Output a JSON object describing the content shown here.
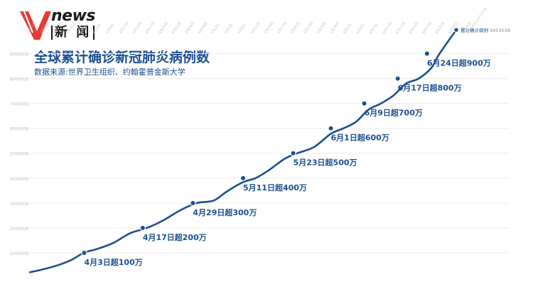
{
  "header": {
    "logo_news": "news",
    "logo_xinwen": "新 闻",
    "title": "全球累计确诊新冠肺炎病例数",
    "source": "数据来源:世界卫生组织、约翰霍普金斯大学"
  },
  "colors": {
    "line": "#1d4f91",
    "title": "#1d4f91",
    "logo_red": "#e53935",
    "grid": "#ececec",
    "tick": "#b9b9b9"
  },
  "chart_data": {
    "type": "line",
    "title": "全球累计确诊新冠肺炎病例数",
    "xlabel": "",
    "ylabel": "",
    "ylim": [
      0,
      9500000
    ],
    "yticks": [
      1000000,
      2000000,
      3000000,
      4000000,
      5000000,
      6000000,
      7000000,
      8000000,
      9000000
    ],
    "ytick_labels": [
      "1000000",
      "2000000",
      "3000000",
      "4000000",
      "5000000",
      "6000000",
      "7000000",
      "8000000",
      "9000000"
    ],
    "xticks": [
      "3月21日",
      "3月24日",
      "3月27日",
      "3月30日",
      "4月2日",
      "4月5日",
      "4月8日",
      "4月11日",
      "4月14日",
      "4月17日",
      "4月20日",
      "4月23日",
      "4月26日",
      "4月29日",
      "5月2日",
      "5月5日",
      "5月8日",
      "5月11日",
      "5月14日",
      "5月17日",
      "5月20日",
      "5月23日",
      "5月26日",
      "5月29日",
      "6月1日",
      "6月4日",
      "6月7日",
      "6月10日",
      "6月13日",
      "6月16日",
      "6月19日",
      "6月22日",
      "6月25日",
      "6月28日"
    ],
    "grid": true,
    "series": [
      {
        "name": "累计确诊病例",
        "x": [
          0,
          3,
          7,
          10,
          13,
          16,
          20,
          24,
          28,
          32,
          36,
          40,
          44,
          47,
          51,
          54,
          57,
          61,
          64,
          68,
          72,
          75,
          78,
          81,
          84,
          87,
          90,
          93,
          96,
          98
        ],
        "values": [
          220000,
          330000,
          520000,
          720000,
          1010000,
          1150000,
          1400000,
          1790000,
          2000000,
          2310000,
          2710000,
          3000000,
          3100000,
          3450000,
          3840000,
          4000000,
          4300000,
          4780000,
          5000000,
          5250000,
          5780000,
          6000000,
          6260000,
          6750000,
          7000000,
          7320000,
          7800000,
          8000000,
          8420000,
          9000000
        ]
      }
    ],
    "end_point": {
      "x": 102,
      "value": 9953038
    },
    "end_label": {
      "name": "累计确诊病例",
      "value": "9953038"
    },
    "x_start_label": "3月21日",
    "x_end_label": "6月28日上午12:00",
    "annotations": [
      {
        "x": 13,
        "value": 1000000,
        "text": "4月3日超100万"
      },
      {
        "x": 27,
        "value": 2000000,
        "text": "4月17日超200万"
      },
      {
        "x": 39,
        "value": 3000000,
        "text": "4月29日超300万"
      },
      {
        "x": 51,
        "value": 4000000,
        "text": "5月11日超400万"
      },
      {
        "x": 63,
        "value": 5000000,
        "text": "5月23日超500万"
      },
      {
        "x": 72,
        "value": 6000000,
        "text": "6月1日超600万"
      },
      {
        "x": 80,
        "value": 7000000,
        "text": "6月9日超700万"
      },
      {
        "x": 88,
        "value": 8000000,
        "text": "6月17日超800万"
      },
      {
        "x": 95,
        "value": 9000000,
        "text": "6月24日超900万"
      }
    ]
  }
}
